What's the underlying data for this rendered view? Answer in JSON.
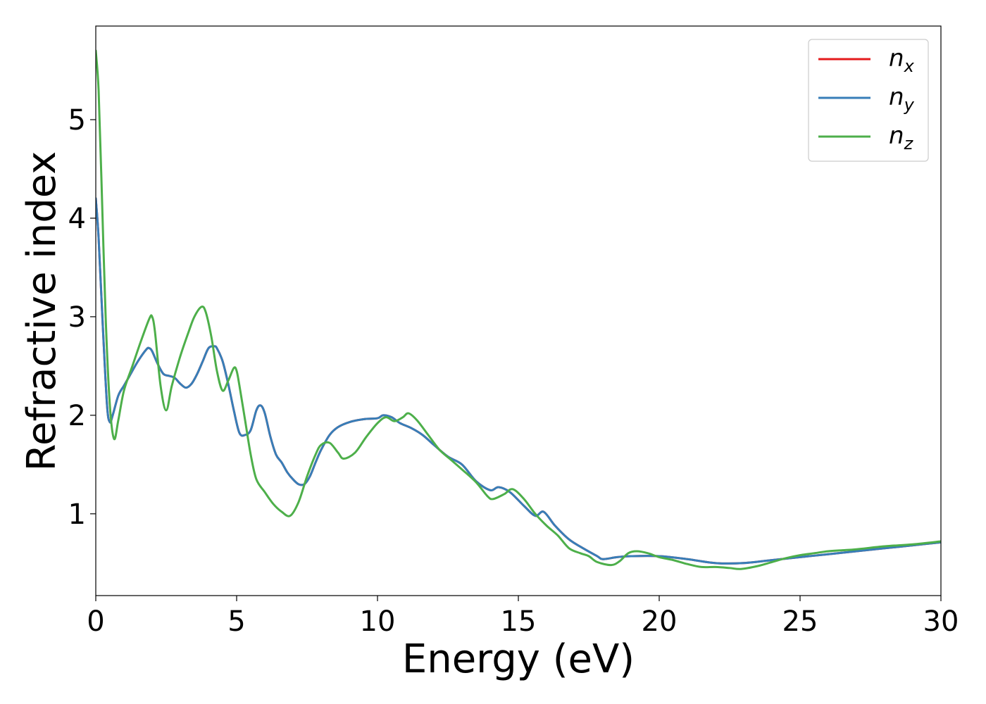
{
  "chart_data": {
    "type": "line",
    "xlabel": "Energy (eV)",
    "ylabel": "Refractive index",
    "xlim": [
      0,
      30
    ],
    "ylim": [
      0.17,
      5.95
    ],
    "xticks": [
      0,
      5,
      10,
      15,
      20,
      25,
      30
    ],
    "yticks": [
      1,
      2,
      3,
      4,
      5
    ],
    "grid": false,
    "legend_position": "top-right",
    "series": [
      {
        "name": "n",
        "subscript": "x",
        "color": "#e41a1c",
        "x": [
          0,
          0.1,
          0.25,
          0.4,
          0.5,
          0.6,
          0.8,
          1.0,
          1.2,
          1.5,
          1.8,
          1.9,
          2.0,
          2.2,
          2.4,
          2.6,
          2.8,
          3.0,
          3.2,
          3.4,
          3.6,
          3.8,
          4.0,
          4.2,
          4.3,
          4.5,
          4.7,
          4.9,
          5.1,
          5.3,
          5.5,
          5.7,
          5.85,
          6.0,
          6.2,
          6.4,
          6.6,
          6.8,
          7.0,
          7.2,
          7.4,
          7.6,
          7.8,
          8.0,
          8.3,
          8.6,
          9.0,
          9.5,
          10.0,
          10.2,
          10.5,
          10.8,
          11.2,
          11.6,
          12.0,
          12.5,
          13.0,
          13.5,
          14.0,
          14.3,
          14.7,
          15.2,
          15.6,
          15.9,
          16.3,
          16.8,
          17.3,
          17.8,
          18.0,
          18.5,
          19.0,
          20.0,
          21.0,
          22.0,
          23.0,
          24.0,
          25.0,
          26.0,
          27.0,
          28.0,
          29.0,
          30.0
        ],
        "values": [
          4.2,
          3.8,
          2.9,
          2.1,
          1.93,
          2.0,
          2.2,
          2.3,
          2.4,
          2.55,
          2.67,
          2.68,
          2.65,
          2.52,
          2.42,
          2.4,
          2.38,
          2.32,
          2.28,
          2.32,
          2.42,
          2.55,
          2.68,
          2.7,
          2.68,
          2.55,
          2.32,
          2.05,
          1.82,
          1.8,
          1.85,
          2.05,
          2.1,
          2.02,
          1.78,
          1.6,
          1.52,
          1.42,
          1.35,
          1.3,
          1.3,
          1.38,
          1.52,
          1.65,
          1.8,
          1.88,
          1.93,
          1.96,
          1.97,
          2.0,
          1.98,
          1.92,
          1.87,
          1.8,
          1.7,
          1.58,
          1.5,
          1.33,
          1.24,
          1.27,
          1.22,
          1.08,
          0.98,
          1.02,
          0.88,
          0.74,
          0.65,
          0.57,
          0.54,
          0.56,
          0.57,
          0.57,
          0.54,
          0.5,
          0.5,
          0.53,
          0.56,
          0.59,
          0.62,
          0.65,
          0.68,
          0.71
        ]
      },
      {
        "name": "n",
        "subscript": "y",
        "color": "#377eb8",
        "x": [
          0,
          0.1,
          0.25,
          0.4,
          0.5,
          0.6,
          0.8,
          1.0,
          1.2,
          1.5,
          1.8,
          1.9,
          2.0,
          2.2,
          2.4,
          2.6,
          2.8,
          3.0,
          3.2,
          3.4,
          3.6,
          3.8,
          4.0,
          4.2,
          4.3,
          4.5,
          4.7,
          4.9,
          5.1,
          5.3,
          5.5,
          5.7,
          5.85,
          6.0,
          6.2,
          6.4,
          6.6,
          6.8,
          7.0,
          7.2,
          7.4,
          7.6,
          7.8,
          8.0,
          8.3,
          8.6,
          9.0,
          9.5,
          10.0,
          10.2,
          10.5,
          10.8,
          11.2,
          11.6,
          12.0,
          12.5,
          13.0,
          13.5,
          14.0,
          14.3,
          14.7,
          15.2,
          15.6,
          15.9,
          16.3,
          16.8,
          17.3,
          17.8,
          18.0,
          18.5,
          19.0,
          20.0,
          21.0,
          22.0,
          23.0,
          24.0,
          25.0,
          26.0,
          27.0,
          28.0,
          29.0,
          30.0
        ],
        "values": [
          4.2,
          3.8,
          2.9,
          2.1,
          1.93,
          2.0,
          2.2,
          2.3,
          2.4,
          2.55,
          2.67,
          2.68,
          2.65,
          2.52,
          2.42,
          2.4,
          2.38,
          2.32,
          2.28,
          2.32,
          2.42,
          2.55,
          2.68,
          2.7,
          2.68,
          2.55,
          2.32,
          2.05,
          1.82,
          1.8,
          1.85,
          2.05,
          2.1,
          2.02,
          1.78,
          1.6,
          1.52,
          1.42,
          1.35,
          1.3,
          1.3,
          1.38,
          1.52,
          1.65,
          1.8,
          1.88,
          1.93,
          1.96,
          1.97,
          2.0,
          1.98,
          1.92,
          1.87,
          1.8,
          1.7,
          1.58,
          1.5,
          1.33,
          1.24,
          1.27,
          1.22,
          1.08,
          0.98,
          1.02,
          0.88,
          0.74,
          0.65,
          0.57,
          0.54,
          0.56,
          0.57,
          0.57,
          0.54,
          0.5,
          0.5,
          0.53,
          0.56,
          0.59,
          0.62,
          0.65,
          0.68,
          0.71
        ]
      },
      {
        "name": "n",
        "subscript": "z",
        "color": "#4daf4a",
        "x": [
          0,
          0.1,
          0.2,
          0.35,
          0.5,
          0.65,
          0.8,
          1.0,
          1.3,
          1.6,
          1.9,
          2.0,
          2.1,
          2.3,
          2.5,
          2.7,
          3.0,
          3.3,
          3.5,
          3.75,
          3.9,
          4.1,
          4.3,
          4.5,
          4.7,
          4.9,
          5.0,
          5.1,
          5.3,
          5.5,
          5.7,
          6.0,
          6.3,
          6.6,
          6.9,
          7.2,
          7.5,
          7.8,
          8.0,
          8.3,
          8.6,
          8.8,
          9.2,
          9.6,
          10.0,
          10.3,
          10.6,
          10.9,
          11.1,
          11.4,
          11.8,
          12.2,
          12.6,
          13.0,
          13.5,
          13.9,
          14.1,
          14.5,
          14.8,
          15.2,
          15.6,
          16.0,
          16.4,
          16.8,
          17.2,
          17.5,
          17.8,
          18.3,
          18.6,
          18.9,
          19.2,
          19.6,
          20.0,
          20.5,
          21.0,
          21.5,
          22.0,
          22.5,
          22.9,
          23.5,
          24.0,
          24.5,
          25.0,
          25.5,
          26.0,
          26.5,
          27.0,
          28.0,
          29.0,
          30.0
        ],
        "values": [
          5.7,
          5.3,
          4.4,
          3.0,
          2.1,
          1.76,
          1.95,
          2.25,
          2.5,
          2.75,
          2.98,
          3.0,
          2.85,
          2.3,
          2.05,
          2.3,
          2.6,
          2.85,
          3.0,
          3.1,
          3.05,
          2.8,
          2.45,
          2.25,
          2.35,
          2.48,
          2.45,
          2.3,
          1.95,
          1.6,
          1.35,
          1.22,
          1.1,
          1.02,
          0.98,
          1.12,
          1.38,
          1.6,
          1.7,
          1.72,
          1.62,
          1.56,
          1.62,
          1.78,
          1.92,
          1.98,
          1.94,
          1.98,
          2.02,
          1.95,
          1.8,
          1.65,
          1.55,
          1.45,
          1.32,
          1.18,
          1.15,
          1.2,
          1.25,
          1.15,
          1.0,
          0.88,
          0.78,
          0.65,
          0.6,
          0.57,
          0.51,
          0.48,
          0.52,
          0.6,
          0.62,
          0.6,
          0.56,
          0.53,
          0.49,
          0.46,
          0.46,
          0.45,
          0.44,
          0.47,
          0.51,
          0.55,
          0.58,
          0.6,
          0.62,
          0.63,
          0.64,
          0.67,
          0.69,
          0.72
        ]
      }
    ]
  }
}
